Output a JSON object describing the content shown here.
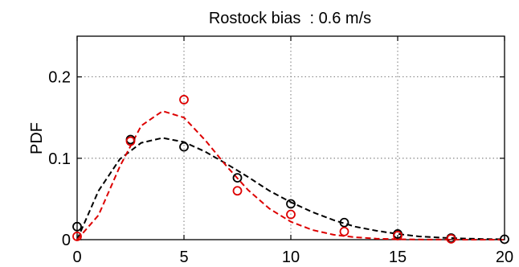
{
  "chart_data": {
    "type": "scatter",
    "title": "Rostock bias  : 0.6 m/s",
    "xlabel": "",
    "ylabel": "PDF",
    "xlim": [
      0,
      20
    ],
    "ylim": [
      0,
      0.25
    ],
    "x_ticks": [
      0,
      5,
      10,
      15,
      20
    ],
    "x_tick_labels": [
      "0",
      "5",
      "10",
      "15",
      "20"
    ],
    "y_ticks": [
      0,
      0.1,
      0.2
    ],
    "y_tick_labels": [
      "0",
      "0.1",
      "0.2"
    ],
    "grid": true,
    "legend": "none",
    "series": [
      {
        "color": "#000000",
        "marker": "circle",
        "x": [
          0,
          2.5,
          5,
          7.5,
          10,
          12.5,
          15,
          17.5,
          20
        ],
        "y": [
          0.016,
          0.123,
          0.114,
          0.076,
          0.044,
          0.021,
          0.007,
          0.002,
          0.0005
        ]
      },
      {
        "color": "#dd0000",
        "marker": "circle",
        "x": [
          0,
          2.5,
          5,
          7.5,
          10,
          12.5,
          15,
          17.5
        ],
        "y": [
          0.004,
          0.121,
          0.172,
          0.06,
          0.031,
          0.01,
          0.005,
          0.001
        ]
      },
      {
        "color": "#000000",
        "style": "dashed",
        "x": [
          0,
          1,
          2,
          3,
          4,
          5,
          6,
          7,
          8,
          9,
          10,
          11,
          12,
          13,
          14,
          15,
          16,
          17,
          18,
          19,
          20
        ],
        "y": [
          0.0,
          0.06,
          0.099,
          0.119,
          0.125,
          0.12,
          0.108,
          0.093,
          0.077,
          0.06,
          0.046,
          0.034,
          0.024,
          0.016,
          0.011,
          0.007,
          0.004,
          0.0025,
          0.0015,
          0.0008,
          0.0004
        ]
      },
      {
        "color": "#dd0000",
        "style": "dashed",
        "x": [
          0,
          1,
          2,
          3,
          4,
          5,
          6,
          7,
          8,
          9,
          10,
          11,
          12,
          13,
          14,
          15,
          16,
          17,
          18,
          19,
          20
        ],
        "y": [
          0.0,
          0.03,
          0.09,
          0.14,
          0.158,
          0.15,
          0.122,
          0.09,
          0.061,
          0.038,
          0.022,
          0.012,
          0.006,
          0.003,
          0.0013,
          0.0005,
          0.0002,
          0.0001,
          0.0,
          0.0,
          0.0
        ]
      }
    ]
  }
}
